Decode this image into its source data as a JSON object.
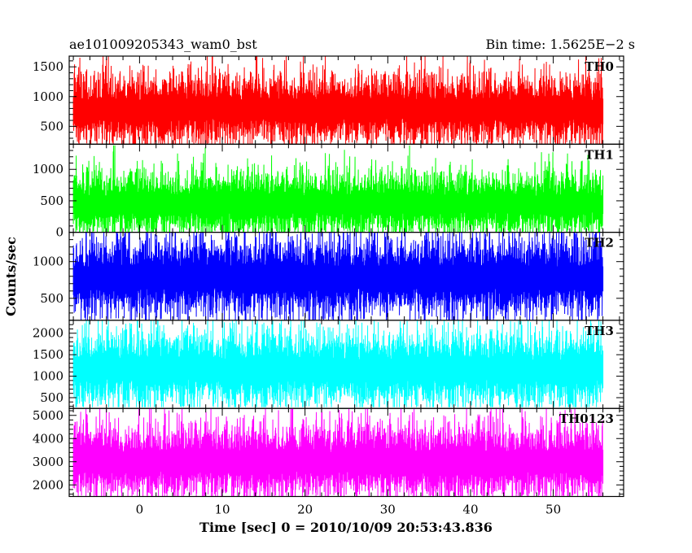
{
  "header": {
    "left_title": "ae101009205343_wam0_bst",
    "right_title": "Bin time: 1.5625E−2 s"
  },
  "chart_data": {
    "type": "line",
    "xlabel": "Time [sec] 0 = 2010/10/09 20:53:43.836",
    "ylabel": "Counts/sec",
    "xlim": [
      -8.5,
      58.5
    ],
    "x_ticks": [
      0,
      10,
      20,
      30,
      40,
      50
    ],
    "x_range_data": [
      -8,
      56
    ],
    "bin_time_s": 0.015625,
    "panels": [
      {
        "name": "TH0",
        "color": "#ff0000",
        "ylim": [
          200,
          1680
        ],
        "y_ticks": [
          500,
          1000,
          1500
        ],
        "mean": 780,
        "typical_low": 300,
        "typical_high": 1300,
        "min": 200,
        "max": 1680
      },
      {
        "name": "TH1",
        "color": "#00ff00",
        "ylim": [
          0,
          1400
        ],
        "y_ticks": [
          0,
          500,
          1000
        ],
        "mean": 450,
        "typical_low": 80,
        "typical_high": 950,
        "min": 0,
        "max": 1380
      },
      {
        "name": "TH2",
        "color": "#0000ff",
        "ylim": [
          200,
          1400
        ],
        "y_ticks": [
          500,
          1000
        ],
        "mean": 780,
        "typical_low": 330,
        "typical_high": 1250,
        "min": 200,
        "max": 1400
      },
      {
        "name": "TH3",
        "color": "#00ffff",
        "ylim": [
          250,
          2300
        ],
        "y_ticks": [
          500,
          1000,
          1500,
          2000
        ],
        "mean": 1150,
        "typical_low": 450,
        "typical_high": 1950,
        "min": 280,
        "max": 2300
      },
      {
        "name": "TH0123",
        "color": "#ff00ff",
        "ylim": [
          1500,
          5300
        ],
        "y_ticks": [
          2000,
          3000,
          4000,
          5000
        ],
        "mean": 3000,
        "typical_low": 1800,
        "typical_high": 4500,
        "min": 1500,
        "max": 5300
      }
    ]
  }
}
